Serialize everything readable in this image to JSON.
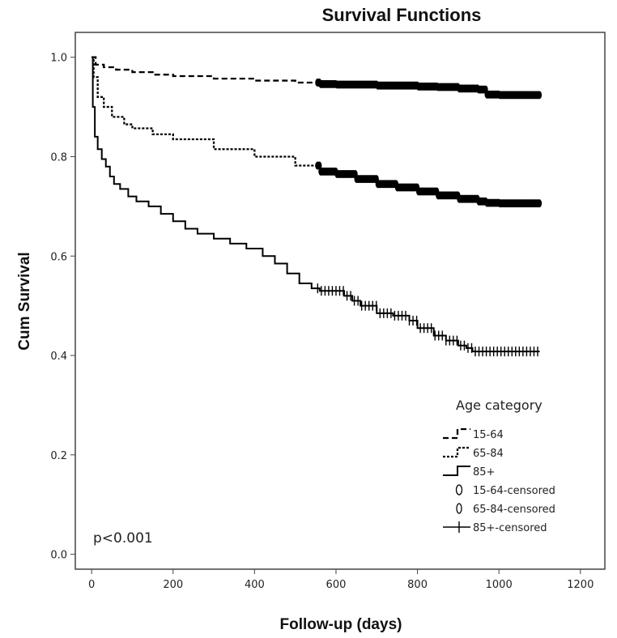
{
  "chart_data": {
    "type": "line",
    "title": "Survival Functions",
    "xlabel": "Follow-up (days)",
    "ylabel": "Cum Survival",
    "xlim": [
      -40,
      1260
    ],
    "ylim": [
      -0.03,
      1.05
    ],
    "xticks": [
      0,
      200,
      400,
      600,
      800,
      1000,
      1200
    ],
    "yticks": [
      0.0,
      0.2,
      0.4,
      0.6,
      0.8,
      1.0
    ],
    "xtick_labels": [
      "0",
      "200",
      "400",
      "600",
      "800",
      "1000",
      "1200"
    ],
    "ytick_labels": [
      "0.0",
      "0.2",
      "0.4",
      "0.6",
      "0.8",
      "1.0"
    ],
    "annotation": "p<0.001",
    "legend": {
      "title": "Age category",
      "position": "bottom-right",
      "entries": [
        "15-64",
        "65-84",
        "85+",
        "15-64-censored",
        "65-84-censored",
        "85+-censored"
      ]
    },
    "series": [
      {
        "name": "15-64",
        "style": "dashed",
        "color": "#000000",
        "x": [
          0,
          10,
          30,
          60,
          100,
          150,
          200,
          300,
          400,
          500,
          560,
          600,
          700,
          800,
          850,
          900,
          950,
          970,
          1000,
          1100
        ],
        "y": [
          1.0,
          0.985,
          0.98,
          0.975,
          0.97,
          0.965,
          0.962,
          0.957,
          0.953,
          0.949,
          0.946,
          0.945,
          0.943,
          0.941,
          0.94,
          0.937,
          0.935,
          0.925,
          0.924,
          0.923
        ]
      },
      {
        "name": "65-84",
        "style": "dotted",
        "color": "#000000",
        "x": [
          0,
          5,
          15,
          30,
          50,
          80,
          100,
          150,
          200,
          300,
          400,
          500,
          560,
          600,
          650,
          700,
          750,
          800,
          850,
          900,
          950,
          970,
          1000,
          1100
        ],
        "y": [
          1.0,
          0.96,
          0.92,
          0.9,
          0.88,
          0.865,
          0.857,
          0.845,
          0.835,
          0.815,
          0.8,
          0.782,
          0.77,
          0.765,
          0.755,
          0.745,
          0.738,
          0.73,
          0.722,
          0.715,
          0.71,
          0.707,
          0.706,
          0.705
        ]
      },
      {
        "name": "85+",
        "style": "solid",
        "color": "#000000",
        "x": [
          0,
          3,
          8,
          15,
          25,
          35,
          45,
          55,
          70,
          90,
          110,
          140,
          170,
          200,
          230,
          260,
          300,
          340,
          380,
          420,
          450,
          480,
          510,
          540,
          560,
          600,
          620,
          640,
          660,
          700,
          740,
          780,
          800,
          840,
          870,
          900,
          920,
          935,
          960,
          1000,
          1050,
          1100
        ],
        "y": [
          1.0,
          0.9,
          0.84,
          0.815,
          0.795,
          0.78,
          0.76,
          0.745,
          0.735,
          0.72,
          0.71,
          0.7,
          0.685,
          0.67,
          0.655,
          0.645,
          0.635,
          0.625,
          0.615,
          0.6,
          0.585,
          0.565,
          0.545,
          0.535,
          0.53,
          0.53,
          0.52,
          0.51,
          0.5,
          0.485,
          0.48,
          0.47,
          0.455,
          0.44,
          0.43,
          0.42,
          0.415,
          0.408,
          0.408,
          0.408,
          0.408,
          0.408
        ]
      }
    ],
    "censored_ranges": [
      {
        "series": "15-64",
        "from": 555,
        "to": 1100
      },
      {
        "series": "65-84",
        "from": 555,
        "to": 1100
      },
      {
        "series": "85+",
        "from": 555,
        "to": 1100
      }
    ]
  }
}
